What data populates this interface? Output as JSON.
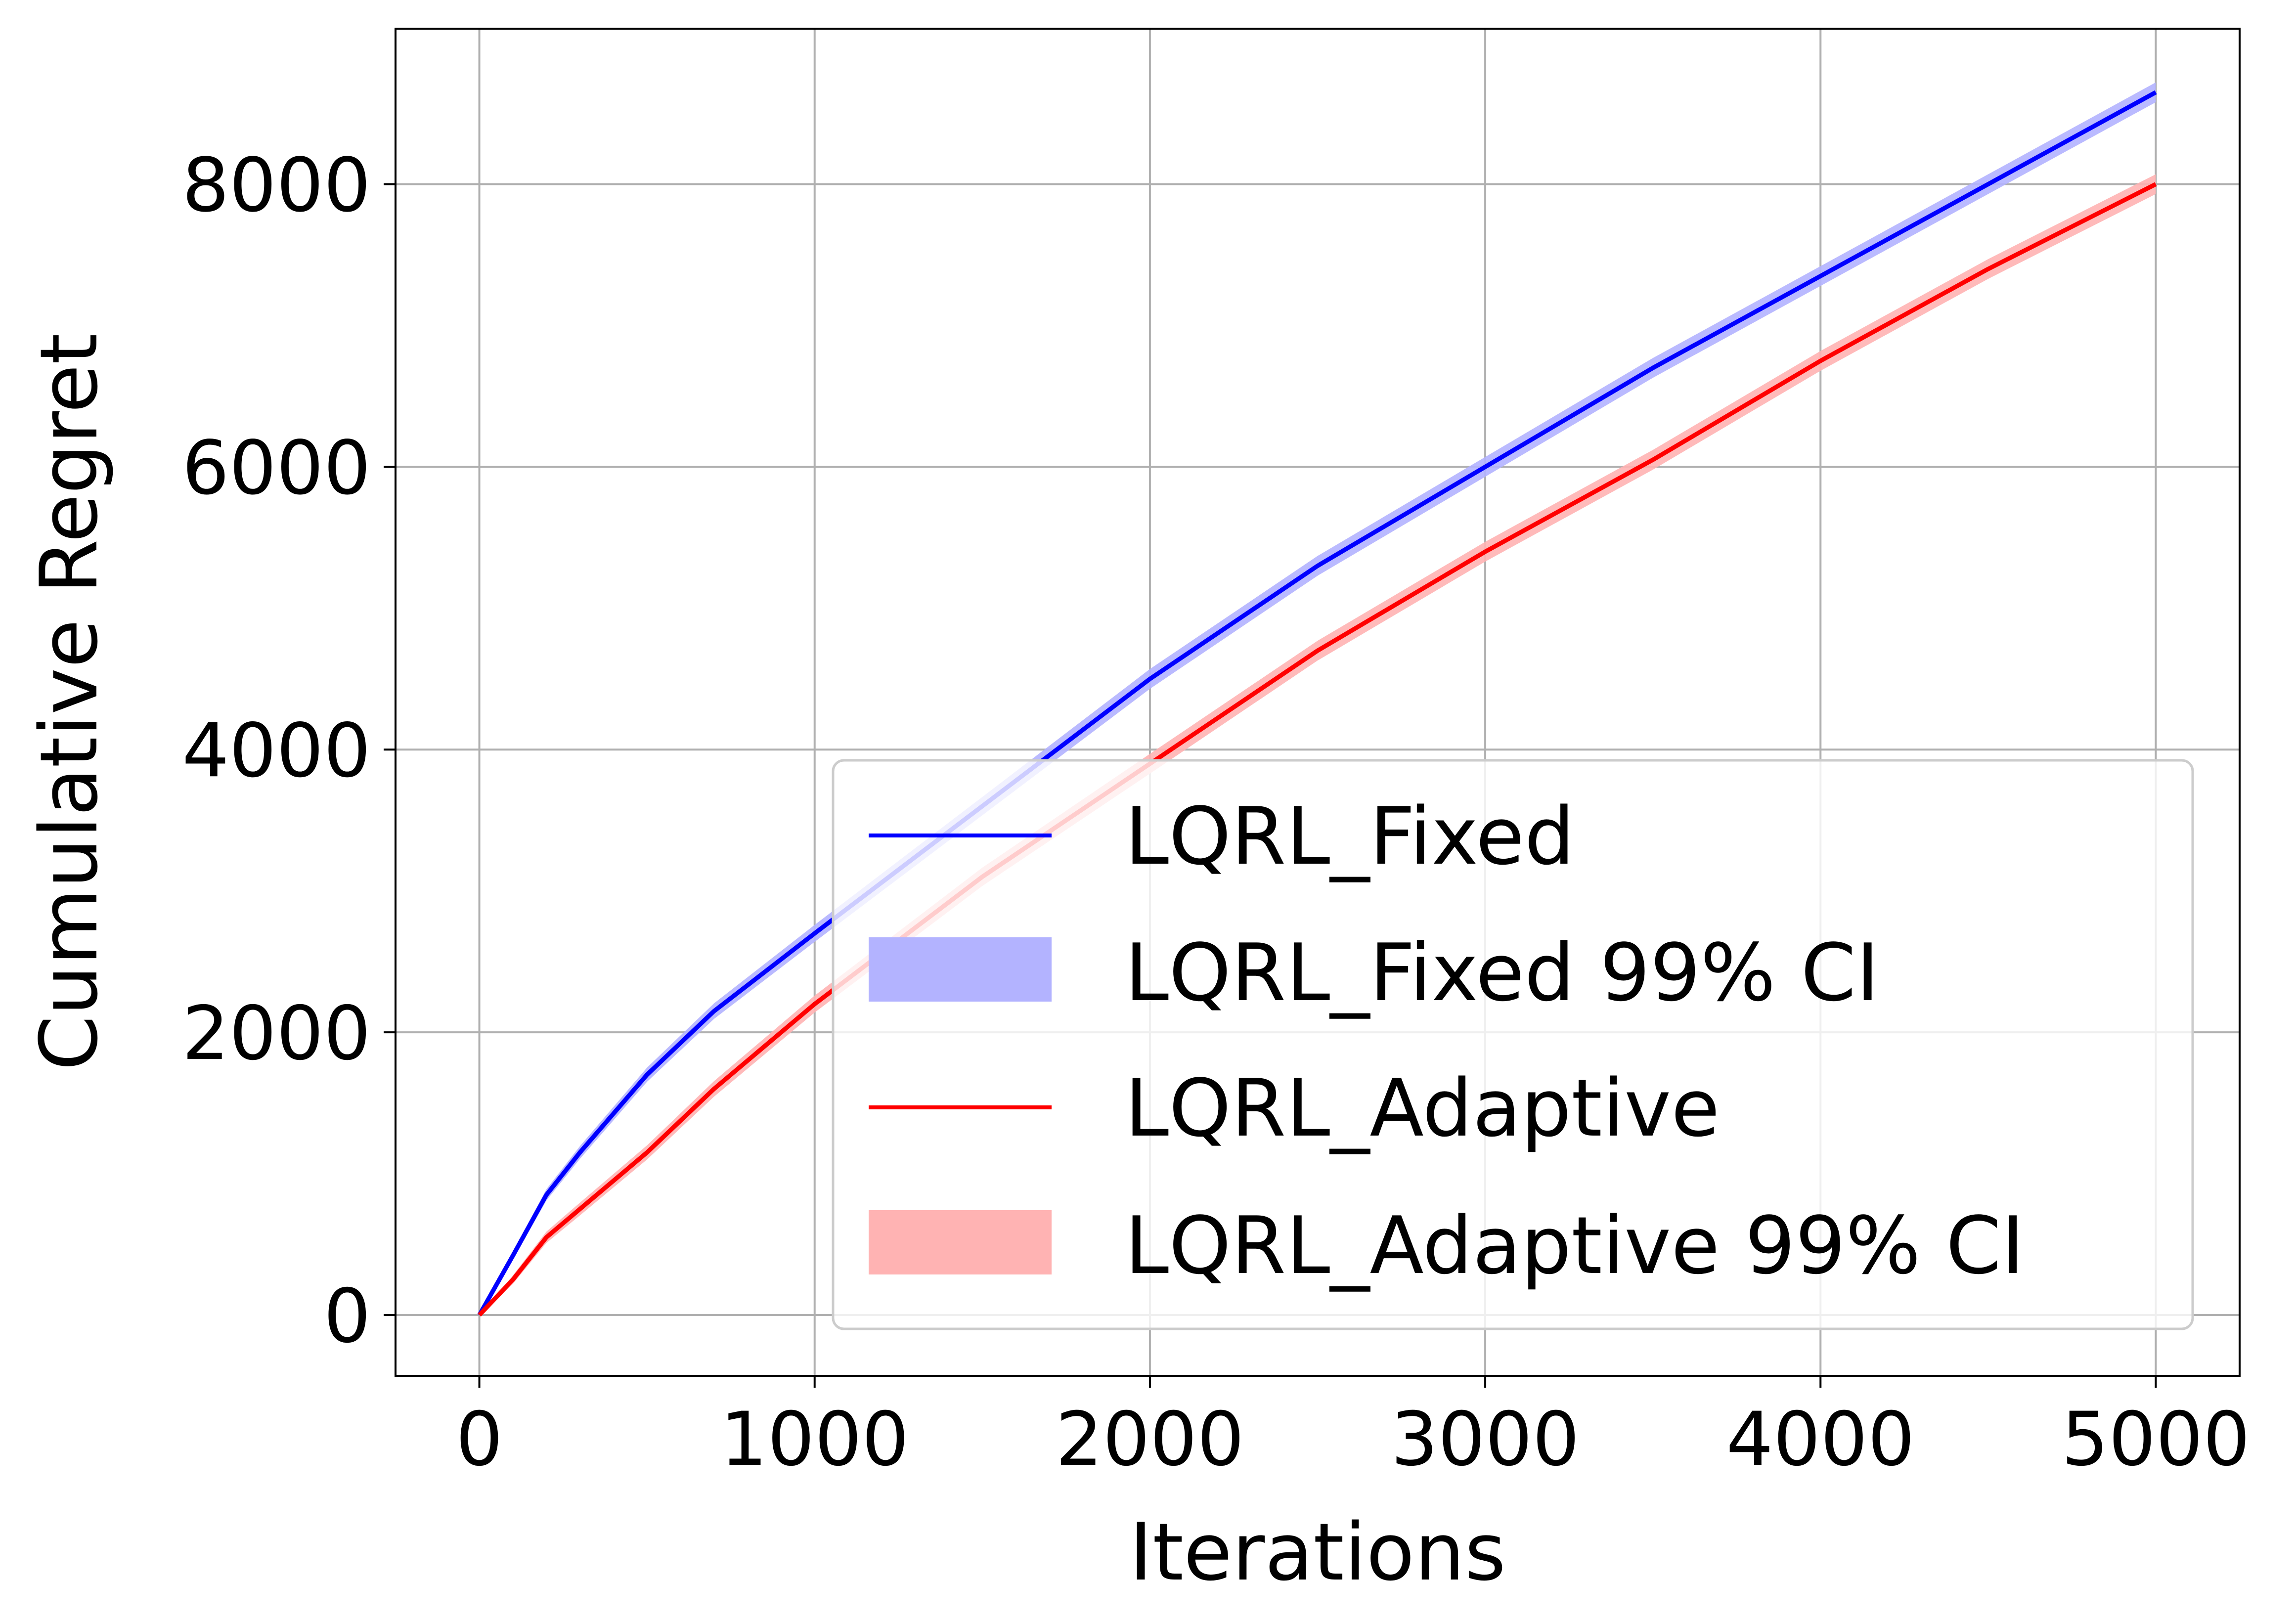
{
  "chart_data": {
    "type": "line",
    "xlabel": "Iterations",
    "ylabel": "Cumulative Regret",
    "xlim": [
      -250,
      5250
    ],
    "ylim": [
      -430,
      9100
    ],
    "xticks": [
      0,
      1000,
      2000,
      3000,
      4000,
      5000
    ],
    "yticks": [
      0,
      2000,
      4000,
      6000,
      8000
    ],
    "grid": true,
    "legend_position": "lower-right",
    "x": [
      0,
      100,
      200,
      300,
      500,
      700,
      1000,
      1500,
      2000,
      2500,
      3000,
      3500,
      4000,
      4500,
      5000
    ],
    "series": [
      {
        "name": "LQRL_Fixed",
        "ci_name": "LQRL_Fixed 99% CI",
        "color": "#0000ff",
        "ci_color": "#b3b3ff",
        "values": [
          0,
          420,
          850,
          1150,
          1700,
          2150,
          2700,
          3600,
          4500,
          5300,
          6000,
          6700,
          7350,
          8000,
          8650
        ],
        "ci_halfwidth": [
          0,
          30,
          40,
          45,
          50,
          55,
          60,
          65,
          70,
          70,
          70,
          70,
          70,
          70,
          70
        ]
      },
      {
        "name": "LQRL_Adaptive",
        "ci_name": "LQRL_Adaptive 99% CI",
        "color": "#ff0000",
        "ci_color": "#ffb3b3",
        "values": [
          0,
          250,
          550,
          750,
          1150,
          1600,
          2200,
          3100,
          3900,
          4700,
          5400,
          6050,
          6750,
          7400,
          8000
        ],
        "ci_halfwidth": [
          0,
          30,
          40,
          45,
          50,
          55,
          60,
          65,
          70,
          70,
          70,
          70,
          70,
          70,
          70
        ]
      }
    ]
  }
}
